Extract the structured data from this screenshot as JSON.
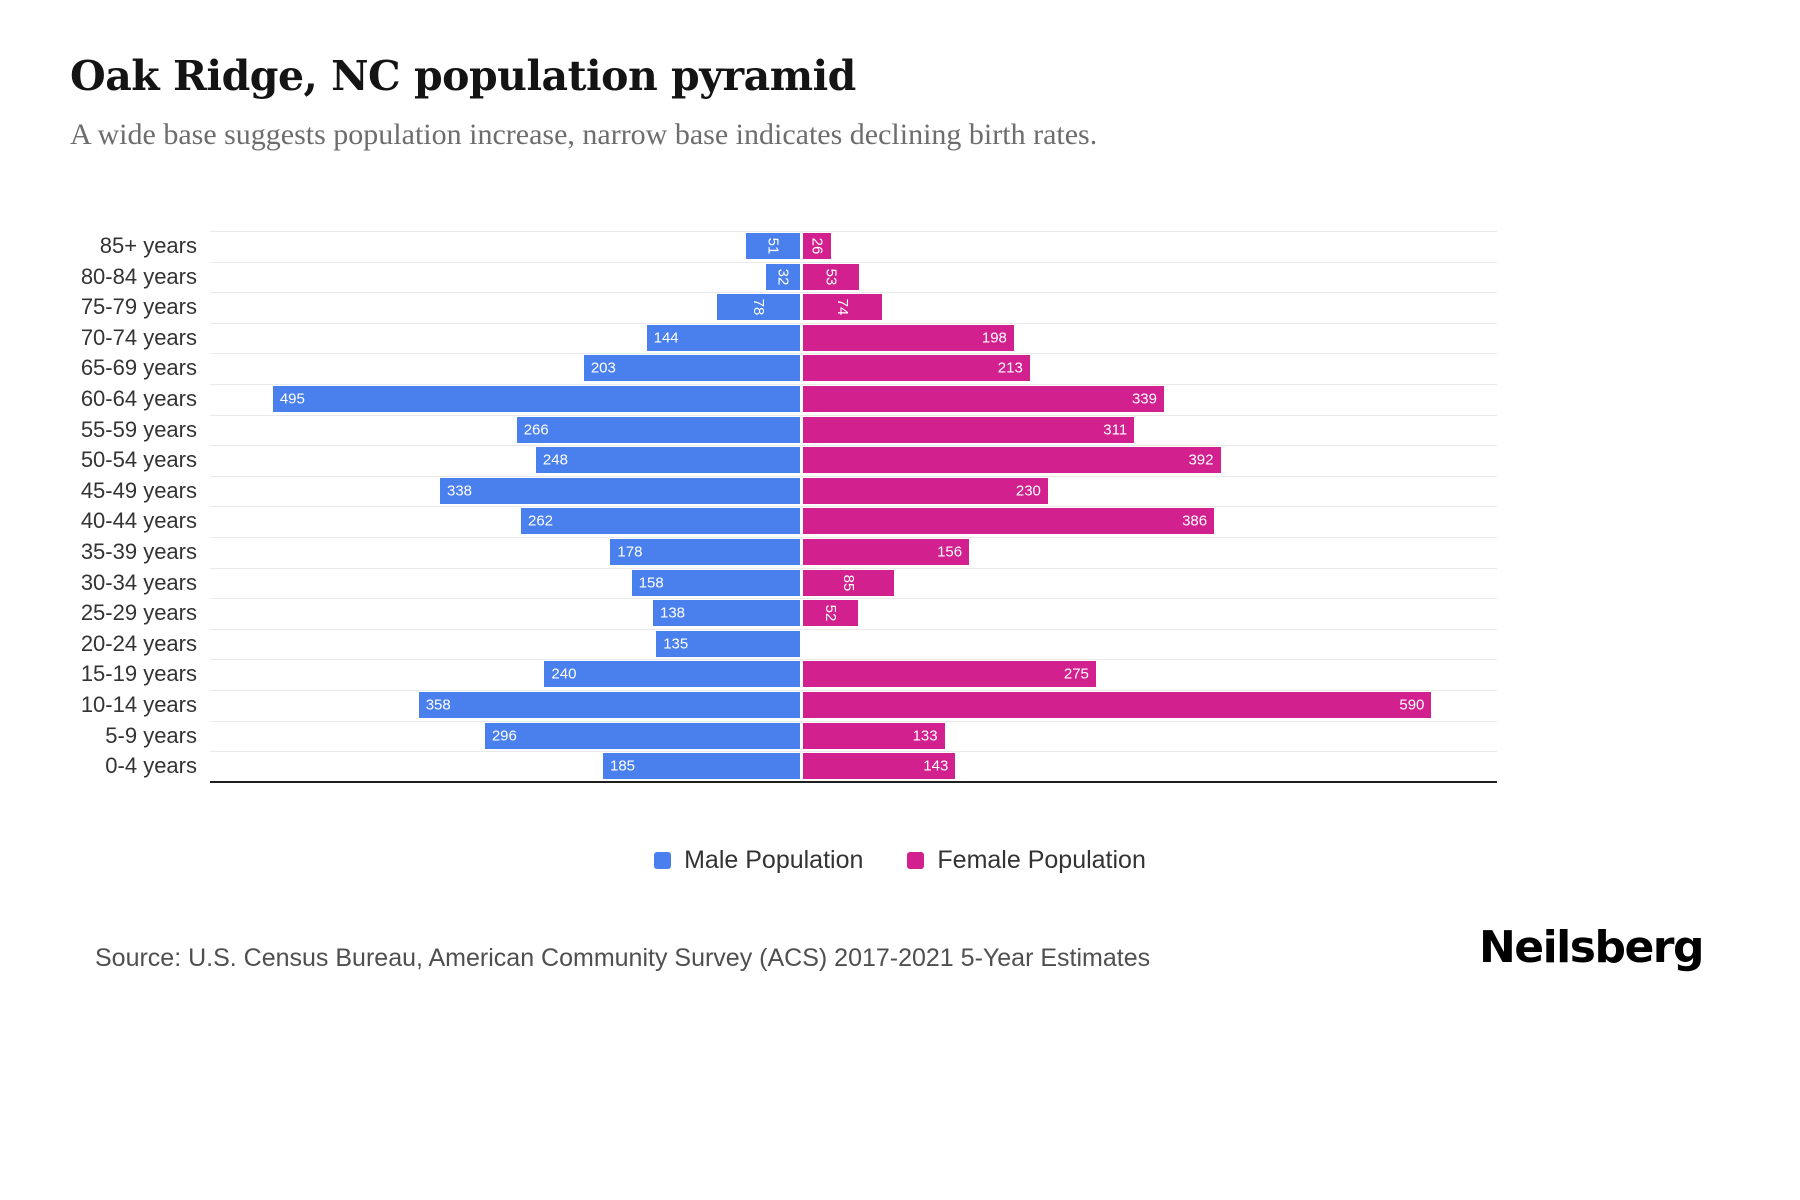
{
  "header": {
    "title": "Oak Ridge, NC population pyramid",
    "subtitle": "A wide base suggests population increase, narrow base indicates declining birth rates."
  },
  "chart_data": {
    "type": "bar",
    "variant": "population-pyramid",
    "orientation": "horizontal",
    "title": "Oak Ridge, NC population pyramid",
    "subtitle": "A wide base suggests population increase, narrow base indicates declining birth rates.",
    "categories": [
      "85+ years",
      "80-84 years",
      "75-79 years",
      "70-74 years",
      "65-69 years",
      "60-64 years",
      "55-59 years",
      "50-54 years",
      "45-49 years",
      "40-44 years",
      "35-39 years",
      "30-34 years",
      "25-29 years",
      "20-24 years",
      "15-19 years",
      "10-14 years",
      "5-9 years",
      "0-4 years"
    ],
    "series": [
      {
        "name": "Male Population",
        "color": "#4a80ee",
        "direction": "left",
        "values": [
          51,
          32,
          78,
          144,
          203,
          495,
          266,
          248,
          338,
          262,
          178,
          158,
          138,
          135,
          240,
          358,
          296,
          185
        ]
      },
      {
        "name": "Female Population",
        "color": "#d2218f",
        "direction": "right",
        "values": [
          26,
          53,
          74,
          198,
          213,
          339,
          311,
          392,
          230,
          386,
          156,
          85,
          52,
          0,
          275,
          590,
          133,
          143
        ]
      }
    ],
    "xlim": [
      0,
      600
    ],
    "grid": true,
    "legend_position": "bottom",
    "value_labels": "inside-bar-end, rotated vertical when value < 100"
  },
  "legend": {
    "male_label": "Male Population",
    "female_label": "Female Population"
  },
  "footer": {
    "source": "Source: U.S. Census Bureau, American Community Survey (ACS) 2017-2021 5-Year Estimates",
    "brand": "Neilsberg"
  },
  "colors": {
    "male": "#4a80ee",
    "female": "#d2218f",
    "gridline": "#e9e9e9",
    "axis": "#1f1f1f",
    "subtitle_text": "#6d6d6d",
    "source_text": "#4f4f4f"
  }
}
